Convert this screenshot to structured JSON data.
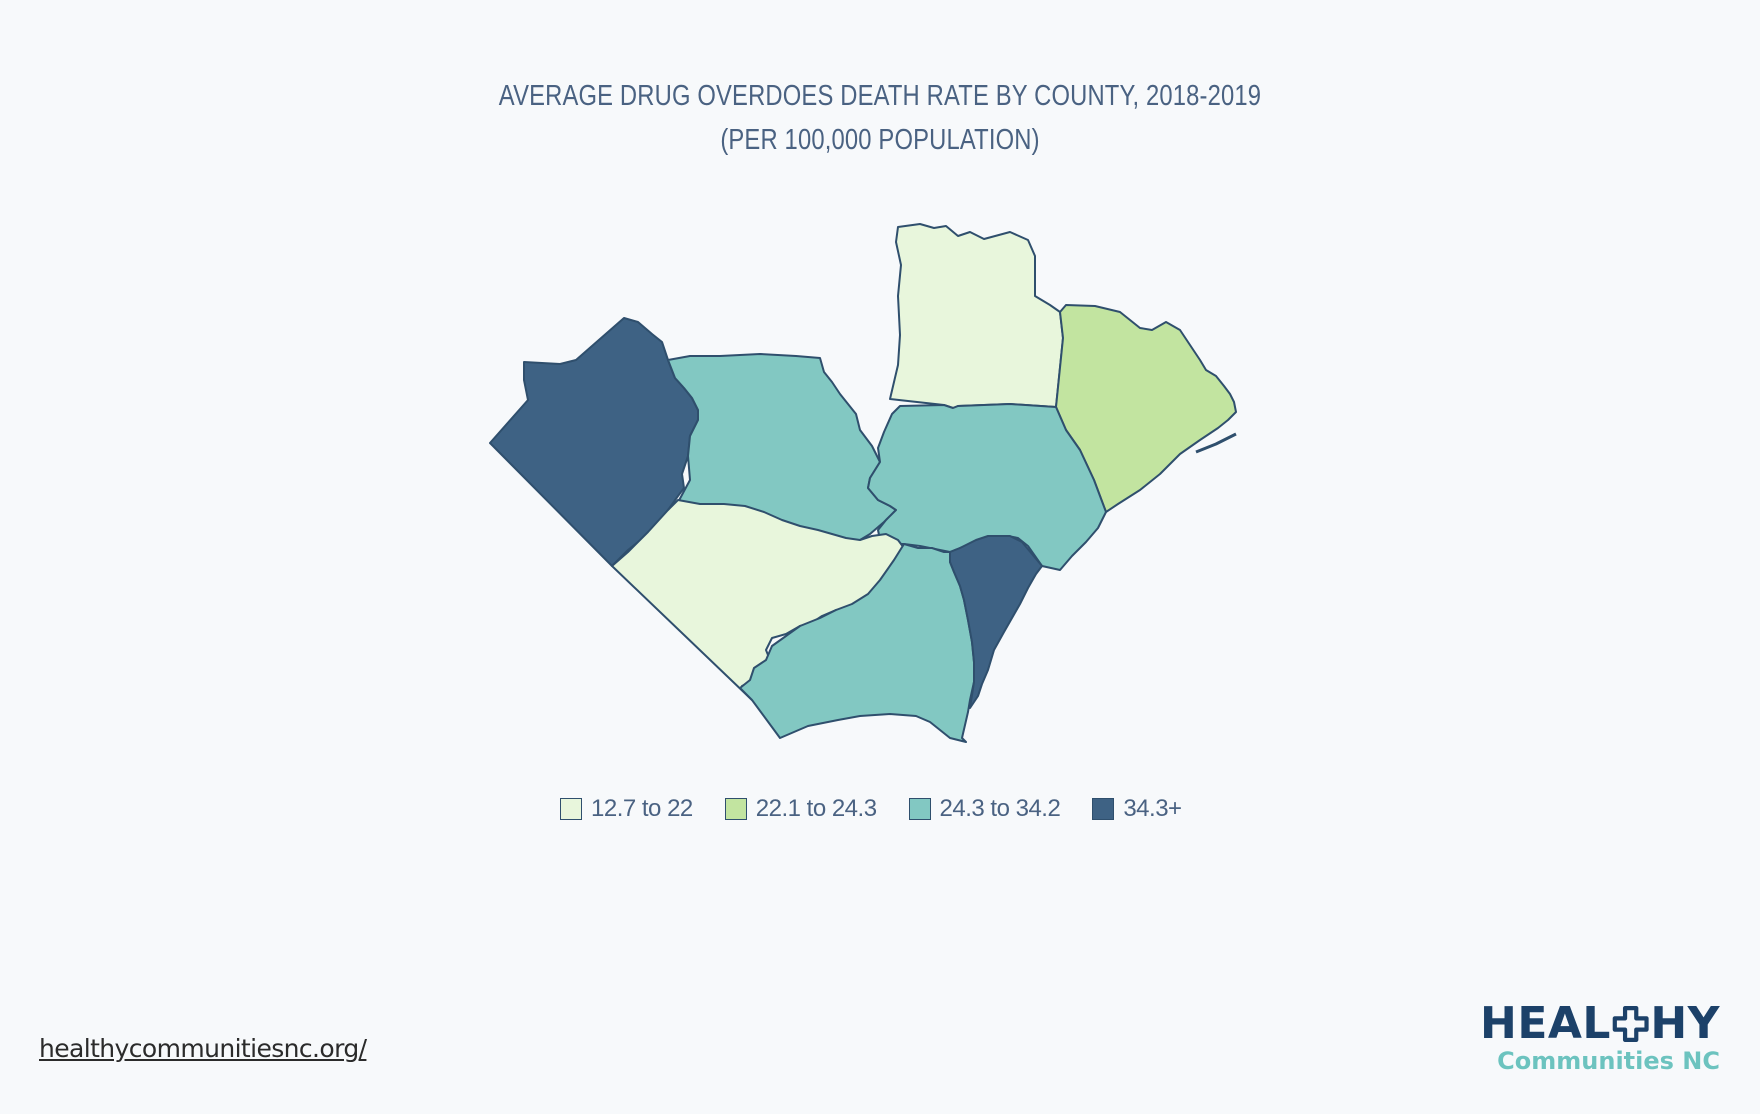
{
  "title": {
    "line1": "AVERAGE DRUG OVERDOES DEATH RATE BY COUNTY, 2018-2019",
    "line2": "(PER 100,000 POPULATION)"
  },
  "colors": {
    "c1": "#e8f6dc",
    "c2": "#c2e4a0",
    "c3": "#82c8c2",
    "c4": "#3e6284",
    "border": "#2f4f6d"
  },
  "legend": [
    {
      "label": "12.7 to 22",
      "class": "c1"
    },
    {
      "label": "22.1 to 24.3",
      "class": "c2"
    },
    {
      "label": "24.3 to 34.2",
      "class": "c3"
    },
    {
      "label": "34.3+",
      "class": "c4"
    }
  ],
  "map": {
    "counties": [
      {
        "id": "north",
        "class": "c1"
      },
      {
        "id": "northeast",
        "class": "c2"
      },
      {
        "id": "far-west",
        "class": "c4"
      },
      {
        "id": "west-central",
        "class": "c3"
      },
      {
        "id": "central",
        "class": "c3"
      },
      {
        "id": "southwest",
        "class": "c1"
      },
      {
        "id": "south",
        "class": "c3"
      },
      {
        "id": "coastal-south",
        "class": "c4"
      }
    ]
  },
  "footer": {
    "link": "healthycommunitiesnc.org/"
  },
  "logo": {
    "part1": "HEAL",
    "part2": "HY",
    "subtitle": "Communities NC"
  }
}
